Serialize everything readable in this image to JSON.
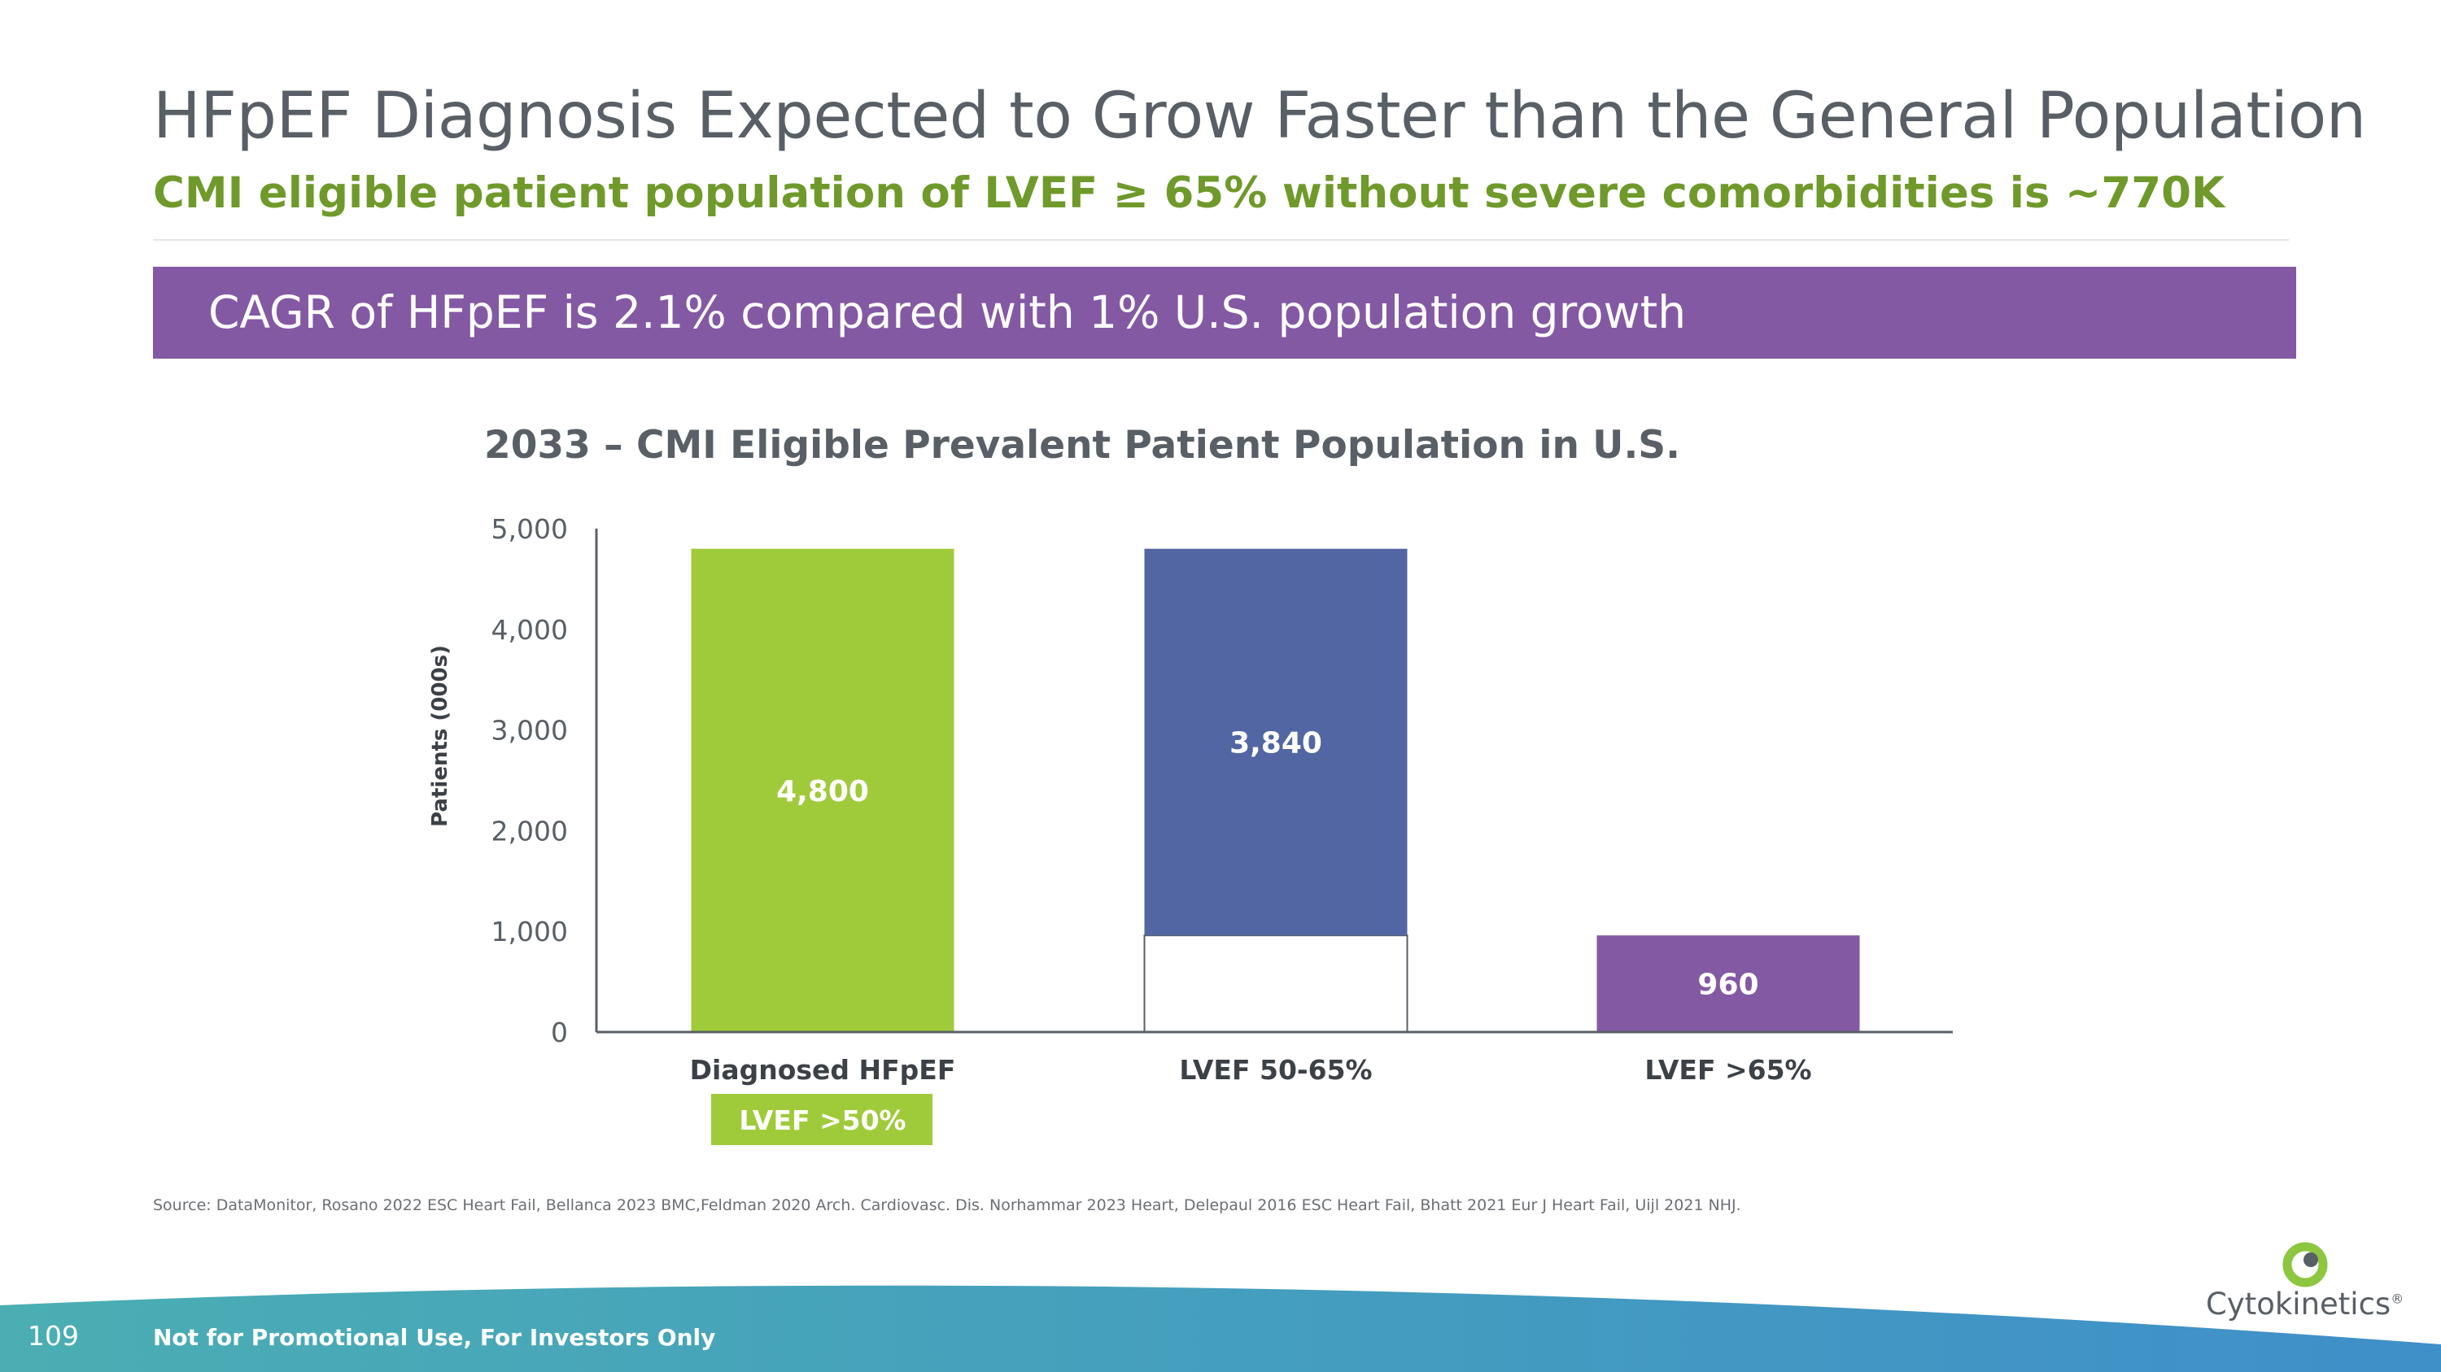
{
  "slide": {
    "title": "HFpEF Diagnosis Expected to Grow Faster than the General Population",
    "subtitle": "CMI eligible patient population of LVEF ≥ 65% without severe comorbidities is ~770K",
    "banner_text": "CAGR of HFpEF is 2.1% compared with 1% U.S. population growth",
    "footnote": "Source: DataMonitor, Rosano 2022 ESC Heart Fail, Bellanca 2023 BMC,Feldman 2020 Arch. Cardiovasc. Dis. Norhammar 2023 Heart, Delepaul 2016 ESC Heart Fail, Bhatt 2021 Eur J Heart Fail, Uijl 2021 NHJ.",
    "page_number": "109",
    "footer_note": "Not for Promotional Use, For Investors Only",
    "logo_text": "Cytokinetics",
    "logo_trademark": "®"
  },
  "colors": {
    "title": "#595f66",
    "subtitle": "#6f9a2b",
    "banner": "#8459a4",
    "green": "#9fcb3a",
    "blue": "#5366a4",
    "purple": "#8459a4",
    "footer_teal": "#4aaeb3",
    "footer_blue": "#3f8fc9"
  },
  "chart_data": {
    "type": "bar",
    "title": "2033 – CMI Eligible Prevalent Patient Population in U.S.",
    "ylabel": "Patients  (000s)",
    "xlabel": "",
    "ylim": [
      0,
      5000
    ],
    "yticks": [
      0,
      1000,
      2000,
      3000,
      4000,
      5000
    ],
    "ytick_labels": [
      "0",
      "1,000",
      "2,000",
      "3,000",
      "4,000",
      "5,000"
    ],
    "grid": false,
    "categories": [
      "Diagnosed HFpEF",
      "LVEF 50-65%",
      "LVEF >65%"
    ],
    "bars": [
      {
        "category": "Diagnosed HFpEF",
        "base": 0,
        "value": 4800,
        "label": "4,800",
        "color_key": "green"
      },
      {
        "category": "LVEF 50-65%",
        "base": 960,
        "value": 3840,
        "label": "3,840",
        "color_key": "blue",
        "outlined_base": true
      },
      {
        "category": "LVEF >65%",
        "base": 0,
        "value": 960,
        "label": "960",
        "color_key": "purple"
      }
    ],
    "annotations": [
      {
        "text": "LVEF >50%",
        "under_category": "Diagnosed HFpEF"
      }
    ]
  }
}
